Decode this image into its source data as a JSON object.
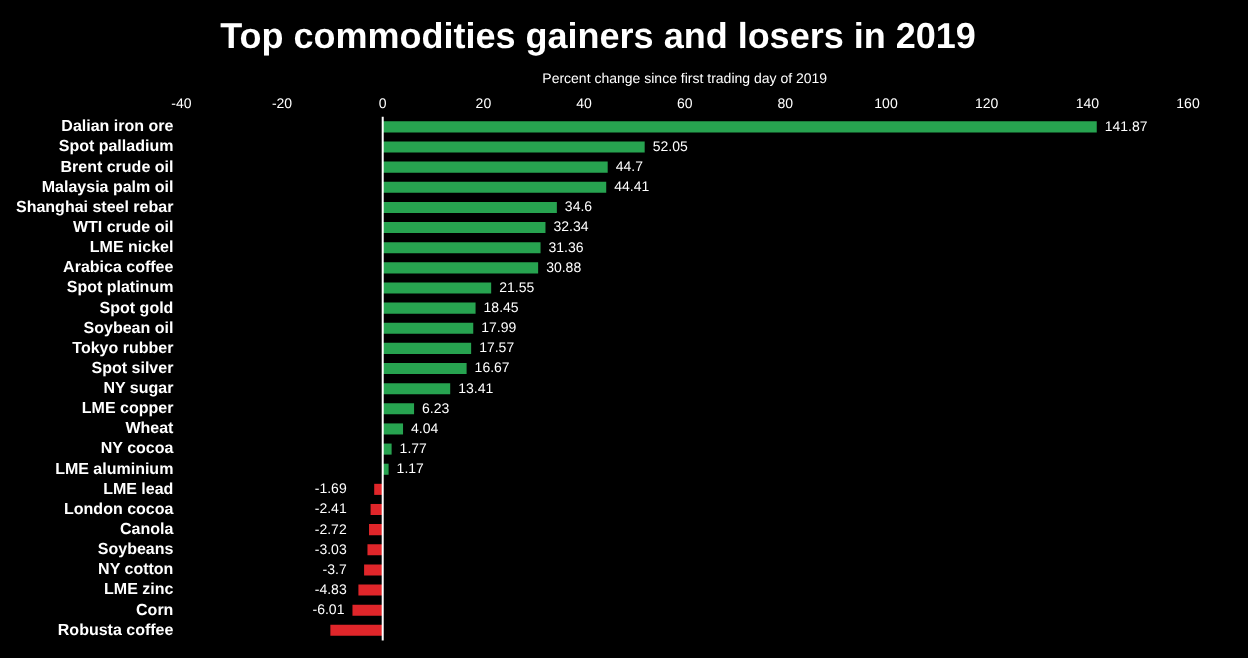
{
  "chart_data": {
    "type": "bar",
    "orientation": "horizontal",
    "title": "Top commodities gainers and losers in 2019",
    "xlabel": "Percent change since first trading day of 2019",
    "categories": [
      "Dalian iron ore",
      "Spot palladium",
      "Brent crude oil",
      "Malaysia palm oil",
      "Shanghai steel rebar",
      "WTI crude oil",
      "LME nickel",
      "Arabica coffee",
      "Spot platinum",
      "Spot gold",
      "Soybean oil",
      "Tokyo rubber",
      "Spot silver",
      "NY sugar",
      "LME copper",
      "Wheat",
      "NY cocoa",
      "LME aluminium",
      "LME lead",
      "London cocoa",
      "Canola",
      "Soybeans",
      "NY cotton",
      "LME zinc",
      "Corn",
      "Robusta coffee"
    ],
    "values": [
      141.87,
      52.05,
      44.7,
      44.41,
      34.6,
      32.34,
      31.36,
      30.88,
      21.55,
      18.45,
      17.99,
      17.57,
      16.67,
      13.41,
      6.23,
      4.04,
      1.77,
      1.17,
      -1.69,
      -2.41,
      -2.72,
      -3.03,
      -3.7,
      -4.83,
      -6.01,
      -10.4
    ],
    "value_labels": [
      "141.87",
      "52.05",
      "44.7",
      "44.41",
      "34.6",
      "32.34",
      "31.36",
      "30.88",
      "21.55",
      "18.45",
      "17.99",
      "17.57",
      "16.67",
      "13.41",
      "6.23",
      "4.04",
      "1.77",
      "1.17",
      "-1.69",
      "-2.41",
      "-2.72",
      "-3.03",
      "-3.7",
      "-4.83",
      "-6.01",
      null
    ],
    "colors": [
      "#27a350",
      "#27a350",
      "#27a350",
      "#27a350",
      "#27a350",
      "#27a350",
      "#27a350",
      "#27a350",
      "#27a350",
      "#27a350",
      "#27a350",
      "#27a350",
      "#27a350",
      "#27a350",
      "#27a350",
      "#27a350",
      "#27a350",
      "#27a350",
      "#e0262a",
      "#e0262a",
      "#e0262a",
      "#e0262a",
      "#e0262a",
      "#e0262a",
      "#e0262a",
      "#e0262a"
    ],
    "xlim": [
      -40,
      160
    ],
    "xticks": [
      -40,
      -20,
      0,
      20,
      40,
      60,
      80,
      100,
      120,
      140,
      160
    ],
    "ref_lines": [
      {
        "axis": "x",
        "value": 0,
        "color": "#ffffff"
      }
    ],
    "grid": false,
    "legend": false
  }
}
